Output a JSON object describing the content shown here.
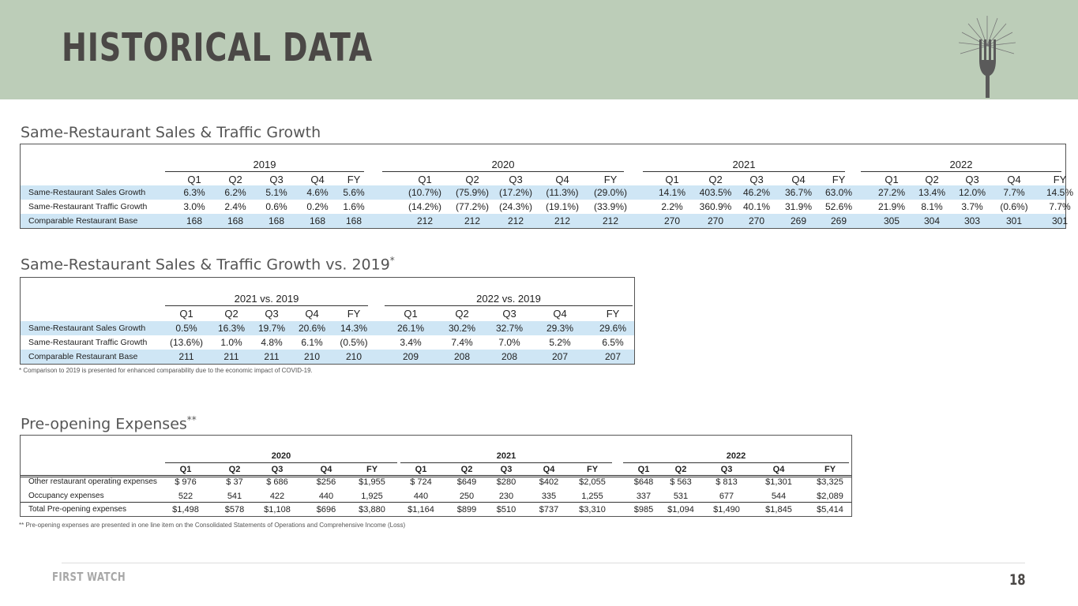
{
  "header": {
    "title": "HISTORICAL DATA",
    "logo_icon": "fork-sunburst-icon"
  },
  "section1": {
    "title": "Same-Restaurant Sales & Traffic Growth",
    "years": [
      "2019",
      "2020",
      "2021",
      "2022"
    ],
    "quarters": [
      "Q1",
      "Q2",
      "Q3",
      "Q4",
      "FY"
    ],
    "rows": [
      {
        "label": "Same-Restaurant Sales Growth",
        "values": [
          "6.3%",
          "6.2%",
          "5.1%",
          "4.6%",
          "5.6%",
          "(10.7%)",
          "(75.9%)",
          "(17.2%)",
          "(11.3%)",
          "(29.0%)",
          "14.1%",
          "403.5%",
          "46.2%",
          "36.7%",
          "63.0%",
          "27.2%",
          "13.4%",
          "12.0%",
          "7.7%",
          "14.5%"
        ]
      },
      {
        "label": "Same-Restaurant Traffic Growth",
        "values": [
          "3.0%",
          "2.4%",
          "0.6%",
          "0.2%",
          "1.6%",
          "(14.2%)",
          "(77.2%)",
          "(24.3%)",
          "(19.1%)",
          "(33.9%)",
          "2.2%",
          "360.9%",
          "40.1%",
          "31.9%",
          "52.6%",
          "21.9%",
          "8.1%",
          "3.7%",
          "(0.6%)",
          "7.7%"
        ]
      },
      {
        "label": "Comparable Restaurant Base",
        "values": [
          "168",
          "168",
          "168",
          "168",
          "168",
          "212",
          "212",
          "212",
          "212",
          "212",
          "270",
          "270",
          "270",
          "269",
          "269",
          "305",
          "304",
          "303",
          "301",
          "301"
        ]
      }
    ]
  },
  "section2": {
    "title": "Same-Restaurant Sales & Traffic Growth vs. 2019",
    "title_mark": "*",
    "years": [
      "2021 vs. 2019",
      "2022 vs. 2019"
    ],
    "quarters": [
      "Q1",
      "Q2",
      "Q3",
      "Q4",
      "FY"
    ],
    "rows": [
      {
        "label": "Same-Restaurant Sales Growth",
        "values": [
          "0.5%",
          "16.3%",
          "19.7%",
          "20.6%",
          "14.3%",
          "26.1%",
          "30.2%",
          "32.7%",
          "29.3%",
          "29.6%"
        ]
      },
      {
        "label": "Same-Restaurant Traffic Growth",
        "values": [
          "(13.6%)",
          "1.0%",
          "4.8%",
          "6.1%",
          "(0.5%)",
          "3.4%",
          "7.4%",
          "7.0%",
          "5.2%",
          "6.5%"
        ]
      },
      {
        "label": "Comparable Restaurant Base",
        "values": [
          "211",
          "211",
          "211",
          "210",
          "210",
          "209",
          "208",
          "208",
          "207",
          "207"
        ]
      }
    ],
    "footnote": "* Comparison to 2019 is presented for enhanced comparability due to the economic impact of COVID-19."
  },
  "section3": {
    "title": "Pre-opening Expenses",
    "title_mark": "**",
    "years": [
      "2020",
      "2021",
      "2022"
    ],
    "quarters": [
      "Q1",
      "Q2",
      "Q3",
      "Q4",
      "FY"
    ],
    "rows": [
      {
        "label": "Other restaurant operating expenses",
        "values": [
          "$  976",
          "$  37",
          "$  686",
          "$256",
          "$1,955",
          "$  724",
          "$649",
          "$280",
          "$402",
          "$2,055",
          "$648",
          "$  563",
          "$  813",
          "$1,301",
          "$3,325"
        ]
      },
      {
        "label": "Occupancy expenses",
        "values": [
          "522",
          "541",
          "422",
          "440",
          "1,925",
          "440",
          "250",
          "230",
          "335",
          "1,255",
          "337",
          "531",
          "677",
          "544",
          "$2,089"
        ]
      },
      {
        "label": "Total Pre-opening expenses",
        "values": [
          "$1,498",
          "$578",
          "$1,108",
          "$696",
          "$3,880",
          "$1,164",
          "$899",
          "$510",
          "$737",
          "$3,310",
          "$985",
          "$1,094",
          "$1,490",
          "$1,845",
          "$5,414"
        ]
      }
    ],
    "footnote": "** Pre-opening expenses are presented in one line item on the Consolidated Statements of Operations and Comprehensive Income (Loss)"
  },
  "footer": {
    "brand": "FIRST WATCH",
    "page_number": "18"
  }
}
